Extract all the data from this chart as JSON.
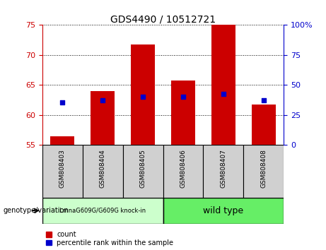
{
  "title": "GDS4490 / 10512721",
  "categories": [
    "GSM808403",
    "GSM808404",
    "GSM808405",
    "GSM808406",
    "GSM808407",
    "GSM808408"
  ],
  "bar_values": [
    56.5,
    64.0,
    71.8,
    65.8,
    75.0,
    61.8
  ],
  "bar_bottom": 55,
  "percentile_values": [
    62.1,
    62.5,
    63.0,
    63.0,
    63.5,
    62.5
  ],
  "ylim_left": [
    55,
    75
  ],
  "ylim_right": [
    0,
    100
  ],
  "yticks_left": [
    55,
    60,
    65,
    70,
    75
  ],
  "yticks_right": [
    0,
    25,
    50,
    75,
    100
  ],
  "ytick_labels_right": [
    "0",
    "25",
    "50",
    "75",
    "100%"
  ],
  "bar_color": "#cc0000",
  "point_color": "#0000cc",
  "background_color": "#ffffff",
  "group1_label": "LmnaG609G/G609G knock-in",
  "group2_label": "wild type",
  "group1_color": "#ccffcc",
  "group2_color": "#66ee66",
  "group1_indices": [
    0,
    1,
    2
  ],
  "group2_indices": [
    3,
    4,
    5
  ],
  "legend_count_label": "count",
  "legend_percentile_label": "percentile rank within the sample",
  "xlabel_label": "genotype/variation",
  "title_fontsize": 10,
  "tick_label_fontsize": 8,
  "sample_box_color": "#d0d0d0"
}
